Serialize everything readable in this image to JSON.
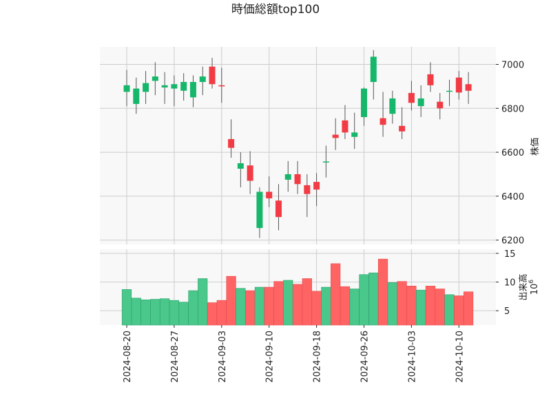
{
  "chart_data": {
    "type": "candlestick",
    "title": "時価総額top100",
    "price_axis": {
      "label": "株価",
      "ylim": [
        6180,
        7080
      ],
      "ticks": [
        6200,
        6400,
        6600,
        6800,
        7000
      ],
      "tick_labels": [
        "6200",
        "6400",
        "6600",
        "6800",
        "7000"
      ]
    },
    "volume_axis": {
      "label": "出来高",
      "scale_label": "10",
      "scale_exponent": "6",
      "ylim": [
        2.5,
        15.7
      ],
      "ticks": [
        5,
        10,
        15
      ],
      "tick_labels": [
        "5",
        "10",
        "15"
      ]
    },
    "x_ticks": [
      {
        "index": 0,
        "label": "2024-08-20"
      },
      {
        "index": 5,
        "label": "2024-08-27"
      },
      {
        "index": 10,
        "label": "2024-09-03"
      },
      {
        "index": 15,
        "label": "2024-09-10"
      },
      {
        "index": 20,
        "label": "2024-09-18"
      },
      {
        "index": 25,
        "label": "2024-09-26"
      },
      {
        "index": 30,
        "label": "2024-10-03"
      },
      {
        "index": 35,
        "label": "2024-10-10"
      }
    ],
    "grid": true,
    "colors": {
      "up": "#16b76b",
      "down": "#f23b44",
      "volume_up": "#4ac78b",
      "volume_down": "#ff6464",
      "wick": "#555555",
      "background": "#f8f8f8",
      "grid": "#cccccc"
    },
    "candles": [
      {
        "open": 6875,
        "high": 6975,
        "low": 6810,
        "close": 6905,
        "volume": 8.7
      },
      {
        "open": 6820,
        "high": 6940,
        "low": 6775,
        "close": 6890,
        "volume": 7.2
      },
      {
        "open": 6875,
        "high": 6970,
        "low": 6820,
        "close": 6915,
        "volume": 6.9
      },
      {
        "open": 6925,
        "high": 7010,
        "low": 6860,
        "close": 6945,
        "volume": 7.0
      },
      {
        "open": 6895,
        "high": 6965,
        "low": 6820,
        "close": 6905,
        "volume": 7.1
      },
      {
        "open": 6890,
        "high": 6950,
        "low": 6810,
        "close": 6910,
        "volume": 6.8
      },
      {
        "open": 6880,
        "high": 6960,
        "low": 6835,
        "close": 6920,
        "volume": 6.5
      },
      {
        "open": 6850,
        "high": 6950,
        "low": 6805,
        "close": 6920,
        "volume": 8.5
      },
      {
        "open": 6920,
        "high": 6990,
        "low": 6860,
        "close": 6945,
        "volume": 10.6
      },
      {
        "open": 6990,
        "high": 7030,
        "low": 6890,
        "close": 6910,
        "volume": 6.4
      },
      {
        "open": 6905,
        "high": 6985,
        "low": 6825,
        "close": 6900,
        "volume": 6.8
      },
      {
        "open": 6660,
        "high": 6750,
        "low": 6575,
        "close": 6620,
        "volume": 11.0
      },
      {
        "open": 6525,
        "high": 6600,
        "low": 6440,
        "close": 6550,
        "volume": 8.9
      },
      {
        "open": 6540,
        "high": 6605,
        "low": 6410,
        "close": 6470,
        "volume": 8.5
      },
      {
        "open": 6255,
        "high": 6440,
        "low": 6210,
        "close": 6420,
        "volume": 9.1
      },
      {
        "open": 6420,
        "high": 6490,
        "low": 6350,
        "close": 6390,
        "volume": 9.1
      },
      {
        "open": 6380,
        "high": 6455,
        "low": 6245,
        "close": 6305,
        "volume": 10.1
      },
      {
        "open": 6475,
        "high": 6560,
        "low": 6420,
        "close": 6500,
        "volume": 10.3
      },
      {
        "open": 6500,
        "high": 6560,
        "low": 6410,
        "close": 6455,
        "volume": 9.6
      },
      {
        "open": 6450,
        "high": 6500,
        "low": 6305,
        "close": 6410,
        "volume": 10.6
      },
      {
        "open": 6465,
        "high": 6505,
        "low": 6355,
        "close": 6430,
        "volume": 8.4
      },
      {
        "open": 6555,
        "high": 6630,
        "low": 6485,
        "close": 6558,
        "volume": 9.1
      },
      {
        "open": 6680,
        "high": 6755,
        "low": 6610,
        "close": 6665,
        "volume": 13.2
      },
      {
        "open": 6745,
        "high": 6815,
        "low": 6660,
        "close": 6690,
        "volume": 9.2
      },
      {
        "open": 6670,
        "high": 6780,
        "low": 6615,
        "close": 6690,
        "volume": 8.8
      },
      {
        "open": 6760,
        "high": 6895,
        "low": 6720,
        "close": 6890,
        "volume": 11.3
      },
      {
        "open": 6920,
        "high": 7065,
        "low": 6840,
        "close": 7035,
        "volume": 11.6
      },
      {
        "open": 6755,
        "high": 6875,
        "low": 6670,
        "close": 6725,
        "volume": 14.0
      },
      {
        "open": 6775,
        "high": 6880,
        "low": 6730,
        "close": 6845,
        "volume": 9.9
      },
      {
        "open": 6720,
        "high": 6805,
        "low": 6660,
        "close": 6695,
        "volume": 10.1
      },
      {
        "open": 6870,
        "high": 6925,
        "low": 6790,
        "close": 6825,
        "volume": 9.3
      },
      {
        "open": 6810,
        "high": 6905,
        "low": 6760,
        "close": 6845,
        "volume": 8.6
      },
      {
        "open": 6955,
        "high": 7010,
        "low": 6875,
        "close": 6905,
        "volume": 9.3
      },
      {
        "open": 6830,
        "high": 6870,
        "low": 6750,
        "close": 6800,
        "volume": 8.8
      },
      {
        "open": 6878,
        "high": 6930,
        "low": 6810,
        "close": 6880,
        "volume": 7.8
      },
      {
        "open": 6940,
        "high": 6970,
        "low": 6840,
        "close": 6872,
        "volume": 7.6
      },
      {
        "open": 6910,
        "high": 6965,
        "low": 6820,
        "close": 6880,
        "volume": 8.3
      }
    ]
  }
}
